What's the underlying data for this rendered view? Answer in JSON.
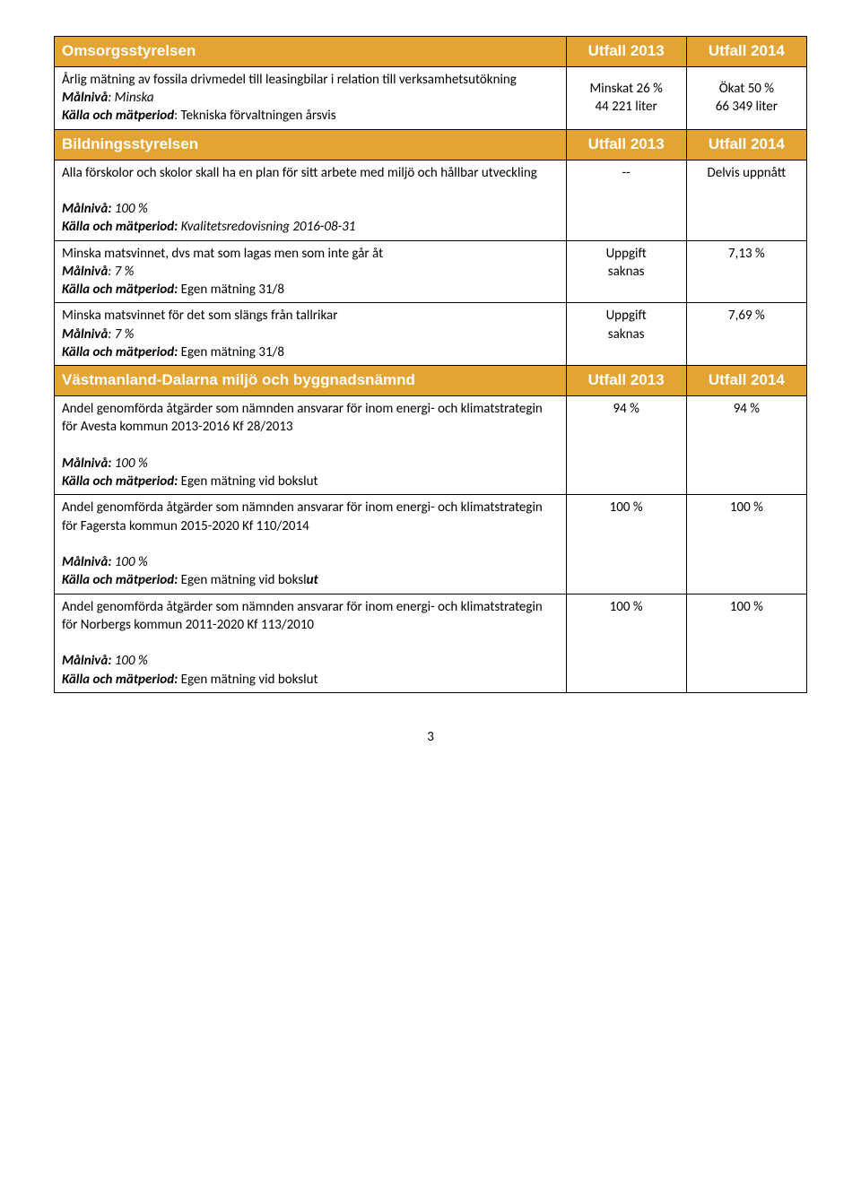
{
  "colors": {
    "header_bg": "#e4a433",
    "header_fg": "#ffffff",
    "border": "#000000",
    "text": "#000000",
    "page_bg": "#ffffff"
  },
  "fonts": {
    "body_family": "Calibri, Arial, sans-serif",
    "header_family": "Arial, sans-serif",
    "body_size_pt": 11,
    "header_size_pt": 12
  },
  "columns": {
    "main_pct": 68,
    "val_pct": 16
  },
  "page_number": "3",
  "sections": [
    {
      "header": {
        "title": "Omsorgsstyrelsen",
        "col1": "Utfall 2013",
        "col2": "Utfall 2014"
      },
      "rows": [
        {
          "text": "Årlig mätning av fossila drivmedel till leasingbilar i relation till verksamhetsutökning",
          "malniva_label": "Målnivå",
          "malniva_value": ": Minska",
          "kalla_label": "Källa och mätperiod",
          "kalla_value": ": Tekniska förvaltningen årsvis",
          "kalla_italic_tail": false,
          "v1a": "Minskat 26 %",
          "v1b": "44 221 liter",
          "v2a": "Ökat 50 %",
          "v2b": "66 349 liter"
        }
      ]
    },
    {
      "header": {
        "title": "Bildningsstyrelsen",
        "col1": "Utfall 2013",
        "col2": "Utfall 2014"
      },
      "rows": [
        {
          "text": "Alla förskolor och skolor skall ha en plan för sitt arbete med miljö och hållbar utveckling",
          "malniva_label": "Målnivå:",
          "malniva_value": " 100 %",
          "malniva_spacer": true,
          "kalla_label": "Källa och mätperiod:",
          "kalla_value": " Kvalitetsredovisning 2016-08-31",
          "kalla_italic_tail": true,
          "v1a": "--",
          "v1b": "",
          "v2a": "Delvis uppnått",
          "v2b": "",
          "v2_top": true
        },
        {
          "text": "Minska matsvinnet, dvs mat som lagas men som inte går åt",
          "malniva_label": "Målnivå",
          "malniva_value": ": 7 %",
          "kalla_label": "Källa och mätperiod:",
          "kalla_value": " Egen mätning 31/8",
          "kalla_italic_tail": false,
          "v1a": "Uppgift",
          "v1b": "saknas",
          "v2a": "7,13 %",
          "v2b": "",
          "v2_top": true
        },
        {
          "text": "Minska matsvinnet för det som slängs från tallrikar",
          "malniva_label": "Målnivå",
          "malniva_value": ": 7 %",
          "kalla_label": "Källa och mätperiod:",
          "kalla_value": " Egen mätning 31/8",
          "kalla_italic_tail": false,
          "v1a": "Uppgift",
          "v1b": "saknas",
          "v2a": "7,69 %",
          "v2b": "",
          "v2_top": true
        }
      ]
    },
    {
      "header": {
        "title": "Västmanland-Dalarna miljö och byggnadsnämnd",
        "col1": "Utfall 2013",
        "col2": "Utfall 2014"
      },
      "rows": [
        {
          "text": "Andel genomförda åtgärder som nämnden ansvarar för inom energi- och klimatstrategin för Avesta kommun 2013-2016 Kf 28/2013",
          "malniva_label": "Målnivå:",
          "malniva_value": " 100 %",
          "malniva_spacer": true,
          "kalla_label": "Källa och mätperiod:",
          "kalla_value": " Egen mätning vid bokslut",
          "kalla_italic_tail": false,
          "v1a": "94 %",
          "v1b": "",
          "v2a": "94 %",
          "v2b": "",
          "v2_top": true
        },
        {
          "text": "Andel genomförda åtgärder som nämnden ansvarar för inom energi- och klimatstrategin för Fagersta kommun 2015-2020 Kf 110/2014",
          "malniva_label": "Målnivå:",
          "malniva_value": " 100 %",
          "malniva_spacer": true,
          "kalla_label": "Källa och mätperiod:",
          "kalla_value": " Egen mätning vid boksl",
          "kalla_tail_bi": "ut",
          "kalla_italic_tail": false,
          "v1a": "100 %",
          "v1b": "",
          "v2a": "100 %",
          "v2b": "",
          "v2_top": true
        },
        {
          "text": "Andel genomförda åtgärder som nämnden ansvarar för inom energi- och klimatstrategin för Norbergs kommun 2011-2020 Kf 113/2010",
          "malniva_label": "Målnivå:",
          "malniva_value": " 100 %",
          "malniva_spacer": true,
          "kalla_label": "Källa och mätperiod:",
          "kalla_value": " Egen mätning vid bokslut",
          "kalla_italic_tail": false,
          "v1a": "100 %",
          "v1b": "",
          "v2a": "100 %",
          "v2b": "",
          "v2_top": true
        }
      ]
    }
  ]
}
